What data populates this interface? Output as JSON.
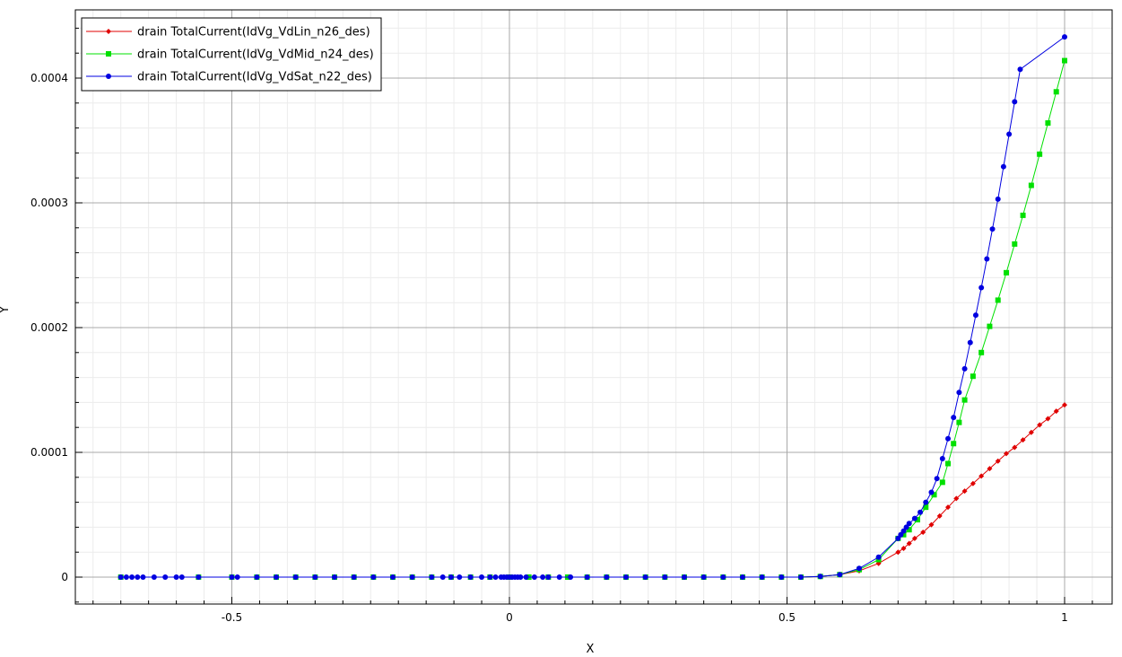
{
  "chart_data": {
    "type": "line",
    "xlabel": "X",
    "ylabel": "Y",
    "xlim": [
      -0.8,
      1.1
    ],
    "ylim": [
      -2.2e-05,
      0.00045
    ],
    "x_ticks": [
      -0.5,
      0,
      0.5,
      1
    ],
    "x_tick_labels": [
      "-0.5",
      "0",
      "0.5",
      "1"
    ],
    "y_ticks": [
      0,
      0.0001,
      0.0002,
      0.0003,
      0.0004
    ],
    "y_tick_labels": [
      "0",
      "0.0001",
      "0.0002",
      "0.0003",
      "0.0004"
    ],
    "grid": true,
    "legend_position": "top-left",
    "series": [
      {
        "name": "drain TotalCurrent(IdVg_VdLin_n26_des)",
        "color": "#e00000",
        "marker": "diamond",
        "points": [
          [
            -0.7,
            0
          ],
          [
            -0.69,
            0
          ],
          [
            -0.68,
            0
          ],
          [
            -0.67,
            0
          ],
          [
            -0.66,
            0
          ],
          [
            -0.64,
            0
          ],
          [
            -0.62,
            0
          ],
          [
            -0.6,
            0
          ],
          [
            -0.59,
            0
          ],
          [
            -0.56,
            0
          ],
          [
            -0.5,
            0
          ],
          [
            -0.49,
            0
          ],
          [
            -0.455,
            0
          ],
          [
            -0.42,
            0
          ],
          [
            -0.385,
            0
          ],
          [
            -0.35,
            0
          ],
          [
            -0.315,
            0
          ],
          [
            -0.28,
            0
          ],
          [
            -0.245,
            0
          ],
          [
            -0.21,
            0
          ],
          [
            -0.175,
            0
          ],
          [
            -0.14,
            0
          ],
          [
            -0.12,
            0
          ],
          [
            -0.105,
            0
          ],
          [
            -0.09,
            0
          ],
          [
            -0.07,
            0
          ],
          [
            -0.05,
            0
          ],
          [
            -0.035,
            0
          ],
          [
            -0.025,
            0
          ],
          [
            -0.015,
            0
          ],
          [
            -0.01,
            0
          ],
          [
            -0.005,
            0
          ],
          [
            0,
            0
          ],
          [
            0.005,
            0
          ],
          [
            0.01,
            0
          ],
          [
            0.015,
            0
          ],
          [
            0.02,
            0
          ],
          [
            0.03,
            0
          ],
          [
            0.045,
            0
          ],
          [
            0.06,
            0
          ],
          [
            0.07,
            0
          ],
          [
            0.09,
            0
          ],
          [
            0.11,
            0
          ],
          [
            0.14,
            0
          ],
          [
            0.175,
            0
          ],
          [
            0.21,
            0
          ],
          [
            0.245,
            0
          ],
          [
            0.28,
            0
          ],
          [
            0.315,
            0
          ],
          [
            0.35,
            0
          ],
          [
            0.385,
            0
          ],
          [
            0.42,
            0
          ],
          [
            0.455,
            0
          ],
          [
            0.49,
            0
          ],
          [
            0.525,
            0
          ],
          [
            0.56,
            5e-07
          ],
          [
            0.595,
            2e-06
          ],
          [
            0.63,
            5e-06
          ],
          [
            0.665,
            1.1e-05
          ],
          [
            0.7,
            2e-05
          ],
          [
            0.71,
            2.3e-05
          ],
          [
            0.72,
            2.7e-05
          ],
          [
            0.73,
            3.1e-05
          ],
          [
            0.745,
            3.6e-05
          ],
          [
            0.76,
            4.2e-05
          ],
          [
            0.775,
            4.9e-05
          ],
          [
            0.79,
            5.6e-05
          ],
          [
            0.805,
            6.3e-05
          ],
          [
            0.82,
            6.9e-05
          ],
          [
            0.835,
            7.5e-05
          ],
          [
            0.85,
            8.1e-05
          ],
          [
            0.865,
            8.7e-05
          ],
          [
            0.88,
            9.3e-05
          ],
          [
            0.895,
            9.9e-05
          ],
          [
            0.91,
            0.000104
          ],
          [
            0.925,
            0.00011
          ],
          [
            0.94,
            0.000116
          ],
          [
            0.955,
            0.000122
          ],
          [
            0.97,
            0.000127
          ],
          [
            0.985,
            0.000133
          ],
          [
            1.0,
            0.000138
          ]
        ]
      },
      {
        "name": "drain TotalCurrent(IdVg_VdMid_n24_des)",
        "color": "#00e000",
        "marker": "square",
        "points": [
          [
            -0.7,
            0
          ],
          [
            -0.56,
            0
          ],
          [
            -0.5,
            0
          ],
          [
            -0.455,
            0
          ],
          [
            -0.42,
            0
          ],
          [
            -0.385,
            0
          ],
          [
            -0.35,
            0
          ],
          [
            -0.315,
            0
          ],
          [
            -0.28,
            0
          ],
          [
            -0.245,
            0
          ],
          [
            -0.21,
            0
          ],
          [
            -0.175,
            0
          ],
          [
            -0.14,
            0
          ],
          [
            -0.105,
            0
          ],
          [
            -0.07,
            0
          ],
          [
            -0.035,
            0
          ],
          [
            0,
            0
          ],
          [
            0.035,
            0
          ],
          [
            0.07,
            0
          ],
          [
            0.105,
            0
          ],
          [
            0.14,
            0
          ],
          [
            0.175,
            0
          ],
          [
            0.21,
            0
          ],
          [
            0.245,
            0
          ],
          [
            0.28,
            0
          ],
          [
            0.315,
            0
          ],
          [
            0.35,
            0
          ],
          [
            0.385,
            0
          ],
          [
            0.42,
            0
          ],
          [
            0.455,
            0
          ],
          [
            0.49,
            0
          ],
          [
            0.525,
            0
          ],
          [
            0.56,
            5e-07
          ],
          [
            0.595,
            2e-06
          ],
          [
            0.63,
            6e-06
          ],
          [
            0.665,
            1.4e-05
          ],
          [
            0.7,
            3.1e-05
          ],
          [
            0.71,
            3.4e-05
          ],
          [
            0.72,
            3.8e-05
          ],
          [
            0.735,
            4.6e-05
          ],
          [
            0.75,
            5.6e-05
          ],
          [
            0.765,
            6.6e-05
          ],
          [
            0.78,
            7.6e-05
          ],
          [
            0.79,
            9.1e-05
          ],
          [
            0.8,
            0.000107
          ],
          [
            0.81,
            0.000124
          ],
          [
            0.82,
            0.000142
          ],
          [
            0.835,
            0.000161
          ],
          [
            0.85,
            0.00018
          ],
          [
            0.865,
            0.000201
          ],
          [
            0.88,
            0.000222
          ],
          [
            0.895,
            0.000244
          ],
          [
            0.91,
            0.000267
          ],
          [
            0.925,
            0.00029
          ],
          [
            0.94,
            0.000314
          ],
          [
            0.955,
            0.000339
          ],
          [
            0.97,
            0.000364
          ],
          [
            0.985,
            0.000389
          ],
          [
            1.0,
            0.000414
          ]
        ]
      },
      {
        "name": "drain TotalCurrent(IdVg_VdSat_n22_des)",
        "color": "#0000e0",
        "marker": "circle",
        "points": [
          [
            -0.7,
            0
          ],
          [
            -0.69,
            0
          ],
          [
            -0.68,
            0
          ],
          [
            -0.67,
            0
          ],
          [
            -0.66,
            0
          ],
          [
            -0.64,
            0
          ],
          [
            -0.62,
            0
          ],
          [
            -0.6,
            0
          ],
          [
            -0.59,
            0
          ],
          [
            -0.56,
            0
          ],
          [
            -0.5,
            0
          ],
          [
            -0.49,
            0
          ],
          [
            -0.455,
            0
          ],
          [
            -0.42,
            0
          ],
          [
            -0.385,
            0
          ],
          [
            -0.35,
            0
          ],
          [
            -0.315,
            0
          ],
          [
            -0.28,
            0
          ],
          [
            -0.245,
            0
          ],
          [
            -0.21,
            0
          ],
          [
            -0.175,
            0
          ],
          [
            -0.14,
            0
          ],
          [
            -0.12,
            0
          ],
          [
            -0.105,
            0
          ],
          [
            -0.09,
            0
          ],
          [
            -0.07,
            0
          ],
          [
            -0.05,
            0
          ],
          [
            -0.035,
            0
          ],
          [
            -0.025,
            0
          ],
          [
            -0.015,
            0
          ],
          [
            -0.01,
            0
          ],
          [
            -0.005,
            0
          ],
          [
            0,
            0
          ],
          [
            0.005,
            0
          ],
          [
            0.01,
            0
          ],
          [
            0.015,
            0
          ],
          [
            0.02,
            0
          ],
          [
            0.03,
            0
          ],
          [
            0.045,
            0
          ],
          [
            0.06,
            0
          ],
          [
            0.07,
            0
          ],
          [
            0.09,
            0
          ],
          [
            0.11,
            0
          ],
          [
            0.14,
            0
          ],
          [
            0.175,
            0
          ],
          [
            0.21,
            0
          ],
          [
            0.245,
            0
          ],
          [
            0.28,
            0
          ],
          [
            0.315,
            0
          ],
          [
            0.35,
            0
          ],
          [
            0.385,
            0
          ],
          [
            0.42,
            0
          ],
          [
            0.455,
            0
          ],
          [
            0.49,
            0
          ],
          [
            0.525,
            0
          ],
          [
            0.56,
            5e-07
          ],
          [
            0.595,
            2e-06
          ],
          [
            0.63,
            7e-06
          ],
          [
            0.665,
            1.6e-05
          ],
          [
            0.7,
            3.1e-05
          ],
          [
            0.705,
            3.4e-05
          ],
          [
            0.71,
            3.7e-05
          ],
          [
            0.715,
            4e-05
          ],
          [
            0.72,
            4.3e-05
          ],
          [
            0.73,
            4.7e-05
          ],
          [
            0.74,
            5.2e-05
          ],
          [
            0.75,
            6e-05
          ],
          [
            0.76,
            6.8e-05
          ],
          [
            0.77,
            7.9e-05
          ],
          [
            0.78,
            9.5e-05
          ],
          [
            0.79,
            0.000111
          ],
          [
            0.8,
            0.000128
          ],
          [
            0.81,
            0.000148
          ],
          [
            0.82,
            0.000167
          ],
          [
            0.83,
            0.000188
          ],
          [
            0.84,
            0.00021
          ],
          [
            0.85,
            0.000232
          ],
          [
            0.86,
            0.000255
          ],
          [
            0.87,
            0.000279
          ],
          [
            0.88,
            0.000303
          ],
          [
            0.89,
            0.000329
          ],
          [
            0.9,
            0.000355
          ],
          [
            0.91,
            0.000381
          ],
          [
            0.92,
            0.000407
          ],
          [
            1.0,
            0.000433
          ]
        ]
      }
    ]
  }
}
